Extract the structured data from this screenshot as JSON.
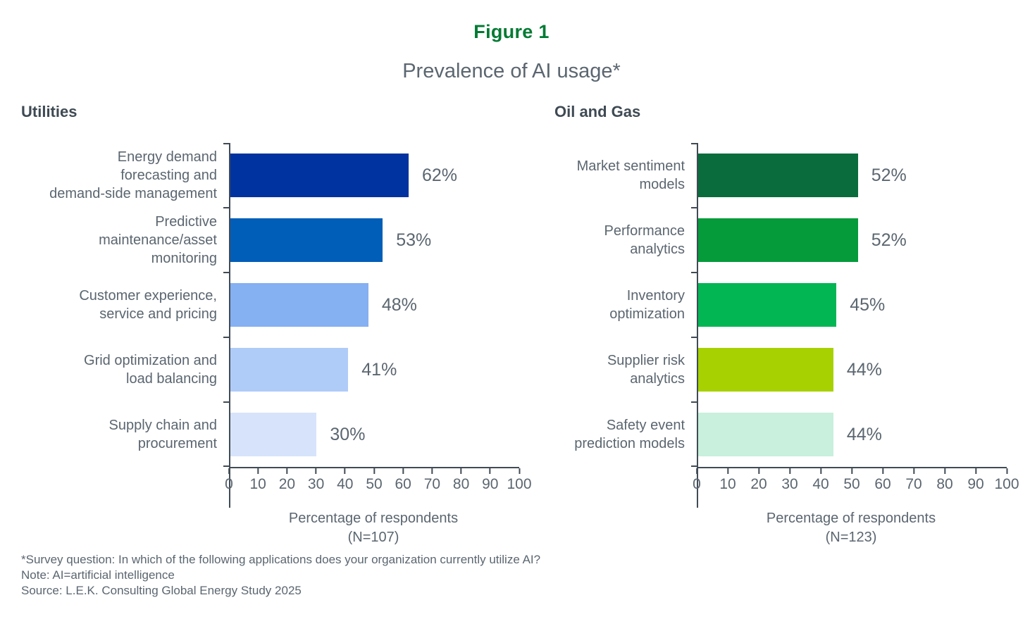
{
  "figure": {
    "title": "Figure 1",
    "subtitle": "Prevalence of AI usage*",
    "title_color": "#007A33"
  },
  "chart_data": [
    {
      "type": "bar",
      "orientation": "horizontal",
      "title": "Utilities",
      "categories": [
        "Energy demand forecasting and demand-side management",
        "Predictive maintenance/asset monitoring",
        "Customer experience, service and pricing",
        "Grid optimization and load balancing",
        "Supply chain and procurement"
      ],
      "display_labels": [
        "Energy demand\nforecasting and\ndemand-side management",
        "Predictive\nmaintenance/asset\nmonitoring",
        "Customer experience,\nservice and pricing",
        "Grid optimization and\nload balancing",
        "Supply chain and\nprocurement"
      ],
      "values": [
        62,
        53,
        48,
        41,
        30
      ],
      "value_labels": [
        "62%",
        "53%",
        "48%",
        "41%",
        "30%"
      ],
      "colors": [
        "#0033A0",
        "#005EB8",
        "#85B0F2",
        "#AFCCF8",
        "#D6E3FB"
      ],
      "xlabel": "Percentage of respondents",
      "n_label": "(N=107)",
      "xlim": [
        0,
        100
      ],
      "xticks": [
        "0",
        "10",
        "20",
        "30",
        "40",
        "50",
        "60",
        "70",
        "80",
        "90",
        "100"
      ],
      "grid": false,
      "legend": "none"
    },
    {
      "type": "bar",
      "orientation": "horizontal",
      "title": "Oil and Gas",
      "categories": [
        "Market sentiment models",
        "Performance analytics",
        "Inventory optimization",
        "Supplier risk analytics",
        "Safety event prediction models"
      ],
      "display_labels": [
        "Market sentiment\nmodels",
        "Performance\nanalytics",
        "Inventory\noptimization",
        "Supplier risk\nanalytics",
        "Safety event\nprediction models"
      ],
      "values": [
        52,
        52,
        45,
        44,
        44
      ],
      "value_labels": [
        "52%",
        "52%",
        "45%",
        "44%",
        "44%"
      ],
      "colors": [
        "#0A6C3D",
        "#059B3B",
        "#02B654",
        "#A7D100",
        "#C8F0DC"
      ],
      "xlabel": "Percentage of respondents",
      "n_label": "(N=123)",
      "xlim": [
        0,
        100
      ],
      "xticks": [
        "0",
        "10",
        "20",
        "30",
        "40",
        "50",
        "60",
        "70",
        "80",
        "90",
        "100"
      ],
      "grid": false,
      "legend": "none"
    }
  ],
  "footnotes": [
    "*Survey question: In which of the following applications does your organization currently utilize AI?",
    "Note: AI=artificial intelligence",
    "Source: L.E.K. Consulting Global Energy Study 2025"
  ]
}
